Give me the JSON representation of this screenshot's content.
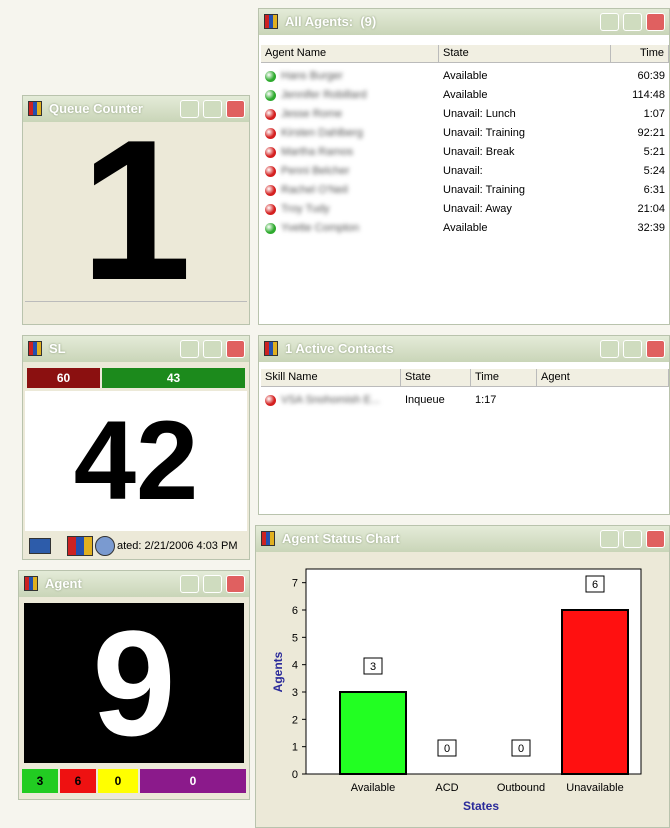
{
  "all_agents": {
    "title": "All Agents:  (9)",
    "columns": [
      "Agent Name",
      "State",
      "Time"
    ],
    "rows": [
      [
        "Hans Burger",
        "Available",
        "60:39"
      ],
      [
        "Jennifer Robillard",
        "Available",
        "114:48"
      ],
      [
        "Jesse Rome",
        "Unavail: Lunch",
        "1:07"
      ],
      [
        "Kirsten Dahlberg",
        "Unavail: Training",
        "92:21"
      ],
      [
        "Martha Ramos",
        "Unavail: Break",
        "5:21"
      ],
      [
        "Penni Belcher",
        "Unavail:",
        "5:24"
      ],
      [
        "Rachel O'Neil",
        "Unavail: Training",
        "6:31"
      ],
      [
        "Troy Tudy",
        "Unavail: Away",
        "21:04"
      ],
      [
        "Yvette Compton",
        "Available",
        "32:39"
      ]
    ],
    "dot_colors": [
      "#2eaa2e",
      "#2eaa2e",
      "#d42020",
      "#d42020",
      "#d42020",
      "#d42020",
      "#d42020",
      "#d42020",
      "#2eaa2e"
    ]
  },
  "queue_counter": {
    "title": "Queue Counter",
    "value": 1
  },
  "sl": {
    "title": "SL",
    "bars": [
      {
        "value": 60,
        "color": "#8b1010"
      },
      {
        "value": 43,
        "color": "#1c8a1c"
      }
    ],
    "value": 42,
    "updated": "ated: 2/21/2006 4:03 PM"
  },
  "active_contacts": {
    "title": "1 Active Contacts",
    "columns": [
      "Skill Name",
      "State",
      "Time",
      "Agent"
    ],
    "rows": [
      [
        "VSA Snohomish E...",
        "Inqueue",
        "1:17"
      ]
    ],
    "dot_colors": [
      "#d42020"
    ]
  },
  "agent": {
    "title": "Agent",
    "value": 9,
    "counts": [
      {
        "value": 3,
        "color": "#22cc22"
      },
      {
        "value": 6,
        "color": "#ee1111"
      },
      {
        "value": 0,
        "color": "#ffff00"
      },
      {
        "value": 0,
        "color": "#8b1a8b"
      }
    ]
  },
  "agent_status_chart": {
    "type": "bar",
    "title": "Agent Status Chart",
    "categories": [
      "Available",
      "ACD",
      "Outbound",
      "Unavailable"
    ],
    "values": [
      3,
      0,
      0,
      6
    ],
    "colors": [
      "#22ff22",
      "#22ff22",
      "#ffee00",
      "#ff1010"
    ],
    "ylim": [
      0,
      7.5
    ],
    "yticks": [
      0,
      1,
      2,
      3,
      4,
      5,
      6,
      7
    ],
    "xlabel": "States",
    "ylabel": "Agents"
  }
}
